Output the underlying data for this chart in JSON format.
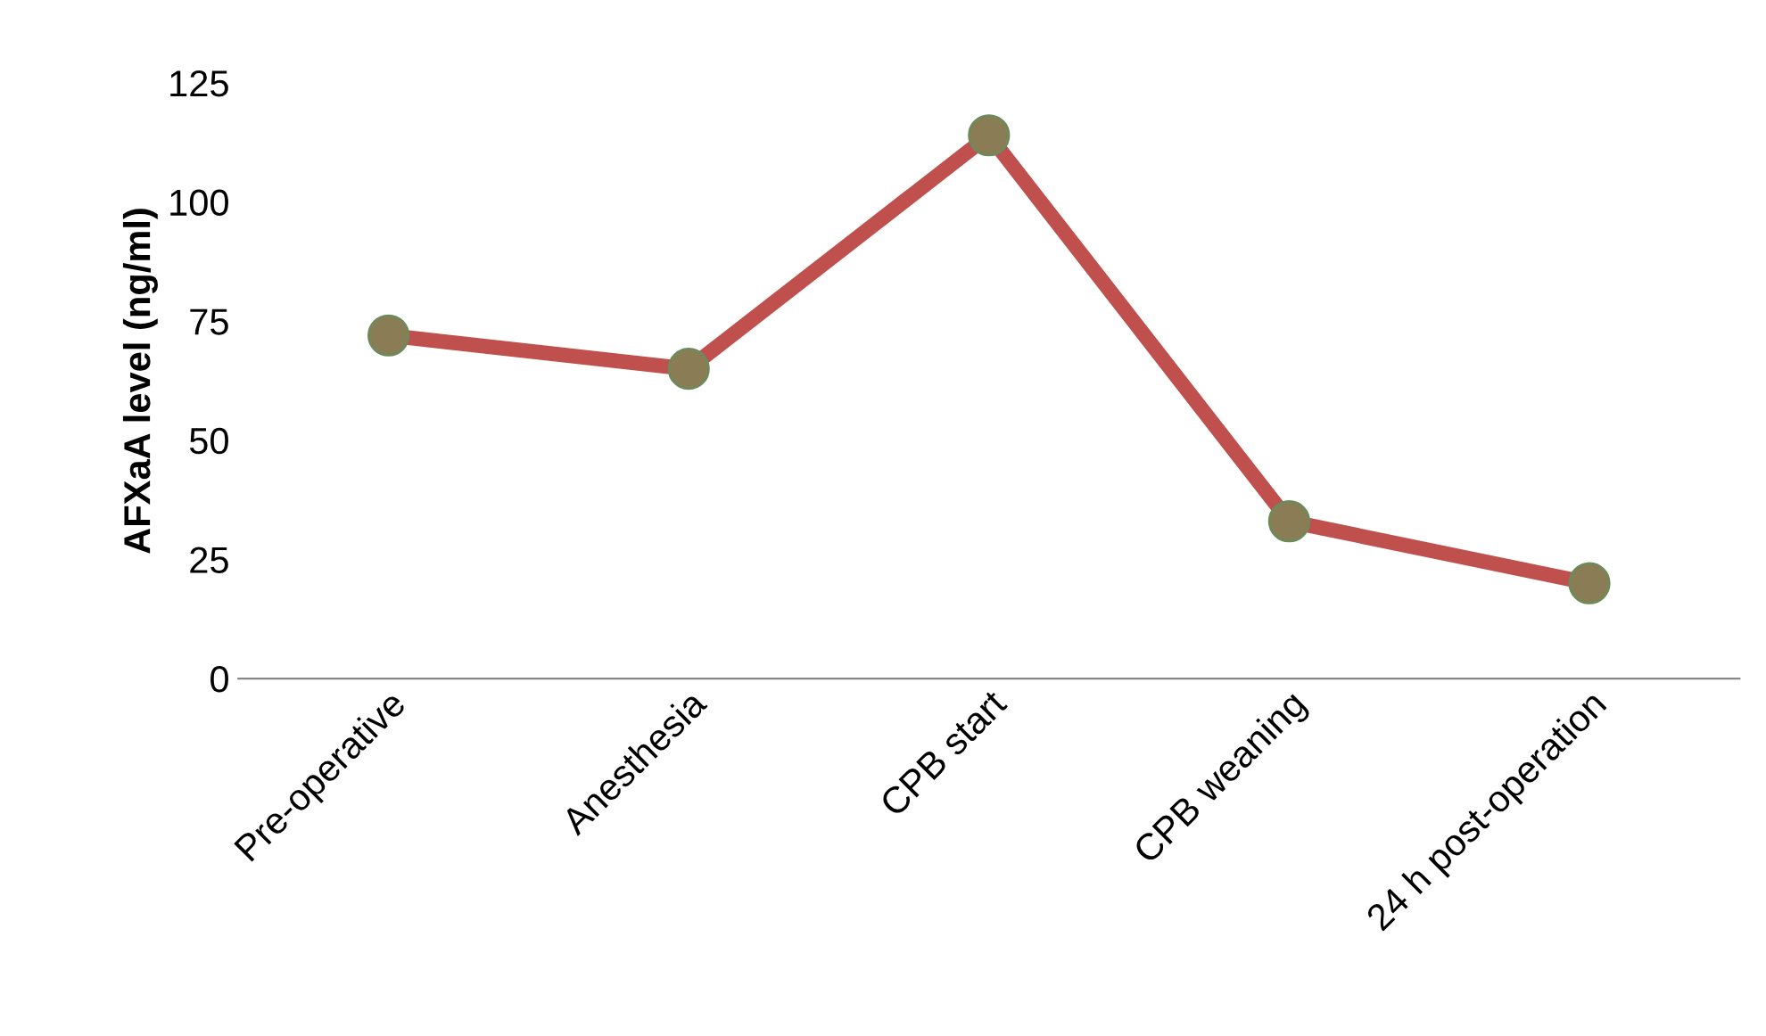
{
  "chart_data": {
    "type": "line",
    "ylabel": "AFXaA level (ng/ml)",
    "categories": [
      "Pre-operative",
      "Anesthesia",
      "CPB start",
      "CPB weaning",
      "24 h post-operation"
    ],
    "series": [
      {
        "color": "#c0504d",
        "values": [
          72,
          65,
          114,
          33,
          20
        ]
      }
    ],
    "ylim": [
      0,
      125
    ],
    "yticks": [
      0,
      25,
      50,
      75,
      100,
      125
    ],
    "grid": false,
    "legend": false,
    "marker": "circle",
    "line_style": "solid"
  }
}
